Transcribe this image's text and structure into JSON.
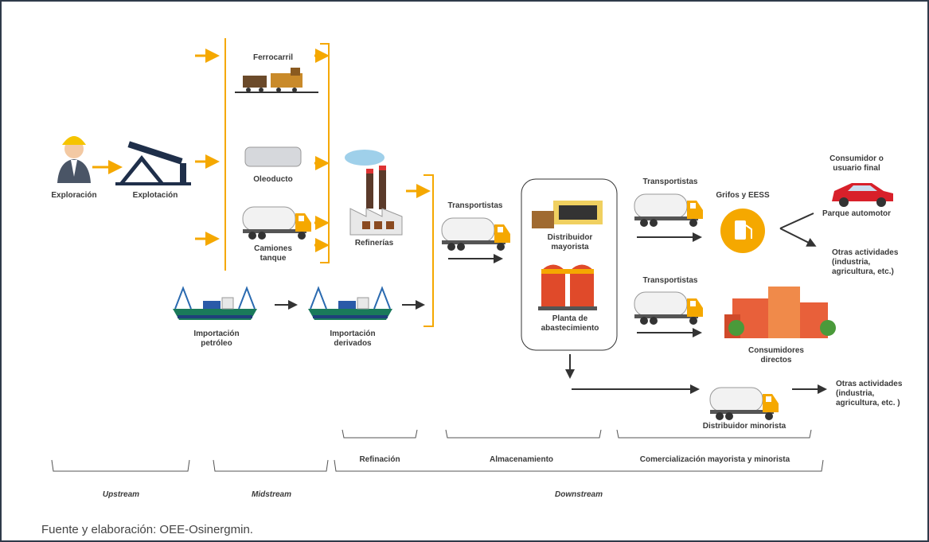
{
  "nodes": [
    {
      "lines": [
        "Exploración"
      ]
    },
    {
      "lines": [
        "Explotación"
      ]
    },
    {
      "lines": [
        "Ferrocarril"
      ]
    },
    {
      "lines": [
        "Oleoducto"
      ]
    },
    {
      "lines": [
        "Camiones",
        "tanque"
      ]
    },
    {
      "lines": [
        "Refinerías"
      ]
    },
    {
      "lines": [
        "Importación",
        "petróleo"
      ]
    },
    {
      "lines": [
        "Importación",
        "derivados"
      ]
    },
    {
      "lines": [
        "Transportistas"
      ]
    },
    {
      "lines": [
        "Distribuidor",
        "mayorista"
      ]
    },
    {
      "lines": [
        "Planta de",
        "abastecimiento"
      ]
    },
    {
      "lines": [
        "Transportistas"
      ]
    },
    {
      "lines": [
        "Grifos y EESS"
      ]
    },
    {
      "lines": [
        "Consumidor o",
        "usuario final"
      ]
    },
    {
      "lines": [
        "Parque automotor"
      ]
    },
    {
      "lines": [
        "Otras actividades",
        "(industria,",
        "agricultura, etc.)"
      ]
    },
    {
      "lines": [
        "Transportistas"
      ]
    },
    {
      "lines": [
        "Consumidores",
        "directos"
      ]
    },
    {
      "lines": [
        "Distribuidor minorista"
      ]
    },
    {
      "lines": [
        "Otras actividades",
        "(industria,",
        "agricultura, etc. )"
      ]
    }
  ],
  "segments": [
    "Refinación",
    "Almacenamiento",
    "Comercialización mayorista y minorista"
  ],
  "stages": [
    "Upstream",
    "Midstream",
    "Downstream"
  ],
  "source": "Fuente y elaboración: OEE-Osinergmin."
}
